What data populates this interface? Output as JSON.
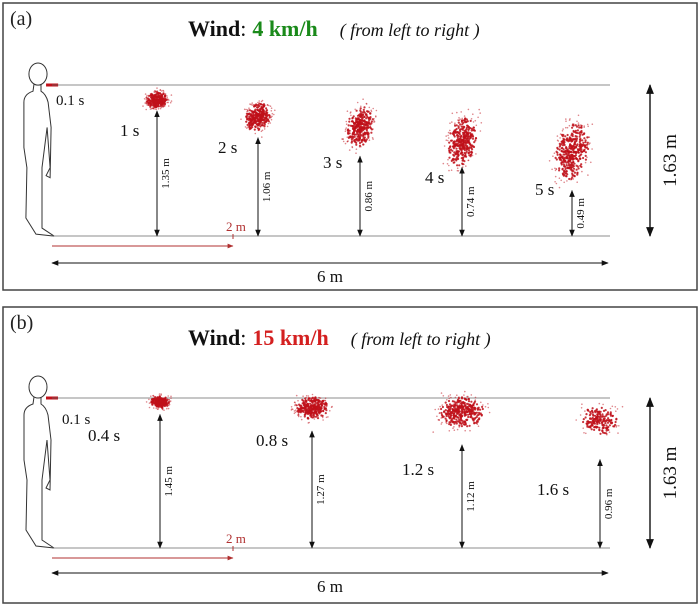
{
  "panels": [
    {
      "label": "(a)",
      "title_word": "Wind",
      "title_colon": ":",
      "speed": "4 km/h",
      "speed_color": "#1a8a1a",
      "direction": "( from left to right )",
      "start_time": "0.1 s",
      "red_distance": "2 m",
      "total_distance": "6 m",
      "person_height": "1.63 m",
      "clouds": [
        {
          "time": "1 s",
          "height": "1.35 m",
          "height_m": 1.35
        },
        {
          "time": "2 s",
          "height": "1.06 m",
          "height_m": 1.06
        },
        {
          "time": "3 s",
          "height": "0.86 m",
          "height_m": 0.86
        },
        {
          "time": "4 s",
          "height": "0.74 m",
          "height_m": 0.74
        },
        {
          "time": "5 s",
          "height": "0.49 m",
          "height_m": 0.49
        }
      ]
    },
    {
      "label": "(b)",
      "title_word": "Wind",
      "title_colon": ":",
      "speed": "15 km/h",
      "speed_color": "#d42020",
      "direction": "( from left to right )",
      "start_time": "0.1 s",
      "red_distance": "2 m",
      "total_distance": "6 m",
      "person_height": "1.63 m",
      "clouds": [
        {
          "time": "0.4 s",
          "height": "1.45 m",
          "height_m": 1.45
        },
        {
          "time": "0.8 s",
          "height": "1.27 m",
          "height_m": 1.27
        },
        {
          "time": "1.2 s",
          "height": "1.12 m",
          "height_m": 1.12
        },
        {
          "time": "1.6 s",
          "height": "0.96 m",
          "height_m": 0.96
        }
      ]
    }
  ],
  "colors": {
    "droplet": "#c0101a",
    "line": "#555555",
    "distance_arrow": "#b03030"
  }
}
